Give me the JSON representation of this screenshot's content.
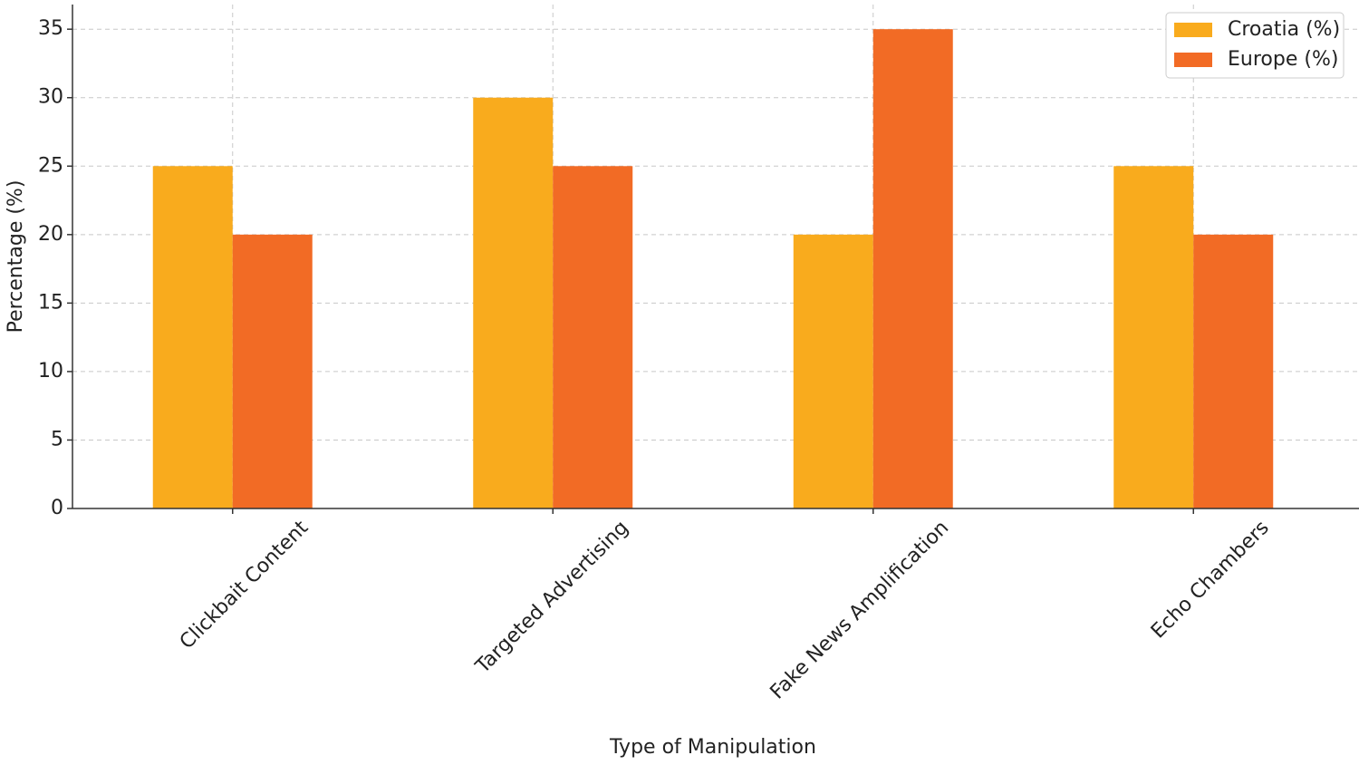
{
  "chart_data": {
    "type": "bar",
    "xlabel": "Type of Manipulation",
    "ylabel": "Percentage (%)",
    "categories": [
      "Clickbait Content",
      "Targeted Advertising",
      "Fake News Amplification",
      "Echo Chambers"
    ],
    "series": [
      {
        "name": "Croatia (%)",
        "color": "#f9ab1d",
        "values": [
          25,
          30,
          20,
          25
        ]
      },
      {
        "name": "Europe (%)",
        "color": "#f26b25",
        "values": [
          20,
          25,
          35,
          20
        ]
      }
    ],
    "ylim": [
      0,
      36.8
    ],
    "yticks": [
      0,
      5,
      10,
      15,
      20,
      25,
      30,
      35
    ],
    "grid": true,
    "legend": "upper right"
  }
}
